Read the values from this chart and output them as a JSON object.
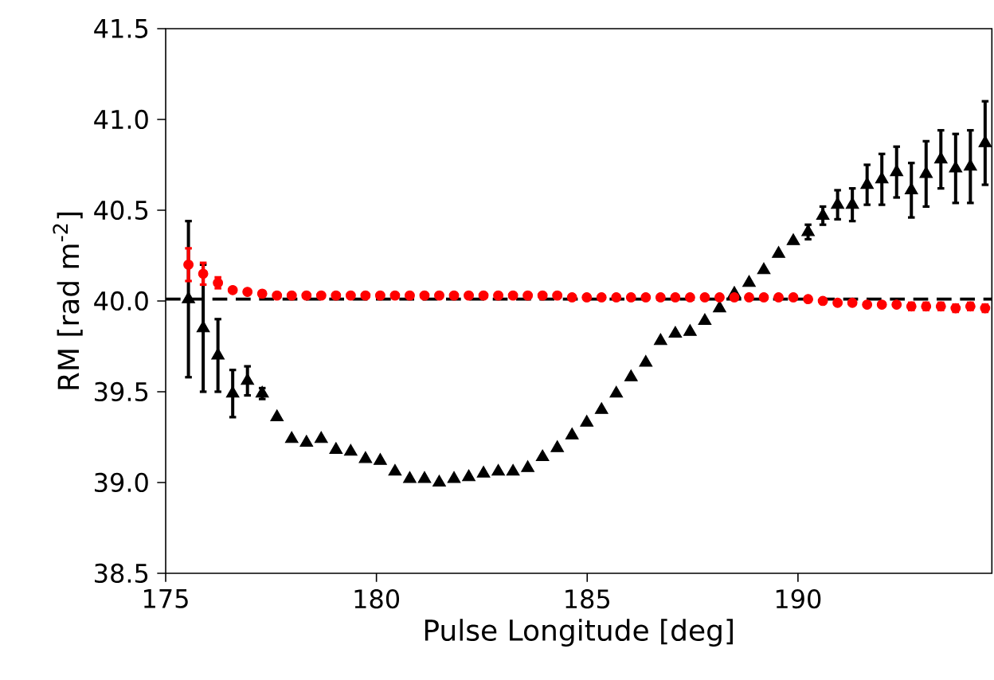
{
  "chart_data": {
    "type": "scatter",
    "xlabel": "Pulse Longitude [deg]",
    "ylabel": "RM [rad m$^{-2}$]",
    "x": [
      175.54,
      175.89,
      176.24,
      176.59,
      176.94,
      177.29,
      177.64,
      177.99,
      178.34,
      178.69,
      179.04,
      179.39,
      179.74,
      180.09,
      180.44,
      180.79,
      181.14,
      181.49,
      181.84,
      182.19,
      182.54,
      182.89,
      183.24,
      183.59,
      183.94,
      184.29,
      184.64,
      184.99,
      185.34,
      185.69,
      186.04,
      186.39,
      186.74,
      187.09,
      187.44,
      187.79,
      188.14,
      188.49,
      188.84,
      189.19,
      189.54,
      189.89,
      190.24,
      190.59,
      190.94,
      191.29,
      191.64,
      191.99,
      192.34,
      192.69,
      193.04,
      193.39,
      193.74,
      194.09,
      194.44
    ],
    "series": [
      {
        "marker": "triangle",
        "color": "#000000",
        "values": [
          40.01,
          39.85,
          39.7,
          39.49,
          39.56,
          39.49,
          39.36,
          39.24,
          39.22,
          39.24,
          39.18,
          39.17,
          39.13,
          39.12,
          39.06,
          39.02,
          39.02,
          39.0,
          39.02,
          39.03,
          39.05,
          39.06,
          39.06,
          39.08,
          39.14,
          39.19,
          39.26,
          39.33,
          39.4,
          39.49,
          39.58,
          39.66,
          39.78,
          39.82,
          39.83,
          39.89,
          39.96,
          40.04,
          40.1,
          40.17,
          40.26,
          40.33,
          40.38,
          40.47,
          40.53,
          40.53,
          40.64,
          40.67,
          40.71,
          40.61,
          40.7,
          40.78,
          40.73,
          40.74,
          40.87
        ],
        "errors": [
          0.43,
          0.35,
          0.2,
          0.13,
          0.08,
          0.03,
          null,
          null,
          null,
          null,
          null,
          null,
          null,
          null,
          null,
          null,
          null,
          null,
          null,
          null,
          null,
          null,
          null,
          null,
          null,
          null,
          null,
          null,
          null,
          null,
          null,
          null,
          null,
          null,
          null,
          null,
          null,
          null,
          null,
          null,
          null,
          null,
          0.04,
          0.05,
          0.08,
          0.09,
          0.11,
          0.14,
          0.14,
          0.15,
          0.18,
          0.16,
          0.19,
          0.2,
          0.23
        ]
      },
      {
        "marker": "circle",
        "color": "#ff0000",
        "values": [
          40.2,
          40.15,
          40.1,
          40.06,
          40.05,
          40.04,
          40.03,
          40.03,
          40.03,
          40.03,
          40.03,
          40.03,
          40.03,
          40.03,
          40.03,
          40.03,
          40.03,
          40.03,
          40.03,
          40.03,
          40.03,
          40.03,
          40.03,
          40.03,
          40.03,
          40.03,
          40.02,
          40.02,
          40.02,
          40.02,
          40.02,
          40.02,
          40.02,
          40.02,
          40.02,
          40.02,
          40.02,
          40.02,
          40.02,
          40.02,
          40.02,
          40.02,
          40.01,
          40.0,
          39.99,
          39.99,
          39.98,
          39.98,
          39.98,
          39.97,
          39.97,
          39.97,
          39.96,
          39.97,
          39.96
        ],
        "errors": [
          0.09,
          0.06,
          0.03,
          null,
          null,
          null,
          null,
          null,
          null,
          null,
          null,
          null,
          null,
          null,
          null,
          null,
          null,
          null,
          null,
          null,
          null,
          null,
          null,
          null,
          null,
          null,
          null,
          null,
          null,
          null,
          null,
          null,
          null,
          null,
          null,
          null,
          null,
          null,
          null,
          null,
          null,
          null,
          null,
          null,
          null,
          null,
          null,
          null,
          null,
          0.02,
          0.02,
          0.02,
          0.02,
          0.02,
          0.02
        ]
      }
    ],
    "ref_lines": [
      {
        "axis": "y",
        "value": 40.01,
        "color": "#000000",
        "line_style": "dashed"
      }
    ],
    "xlim": [
      175,
      194.6
    ],
    "ylim": [
      38.5,
      41.5
    ],
    "xticks": [
      175,
      180,
      185,
      190
    ],
    "yticks": [
      38.5,
      {
        "value": 39,
        "label": "39.0"
      },
      39.5,
      {
        "value": 40,
        "label": "40.0"
      },
      40.5,
      {
        "value": 41,
        "label": "41.0"
      },
      41.5
    ],
    "grid": false
  }
}
